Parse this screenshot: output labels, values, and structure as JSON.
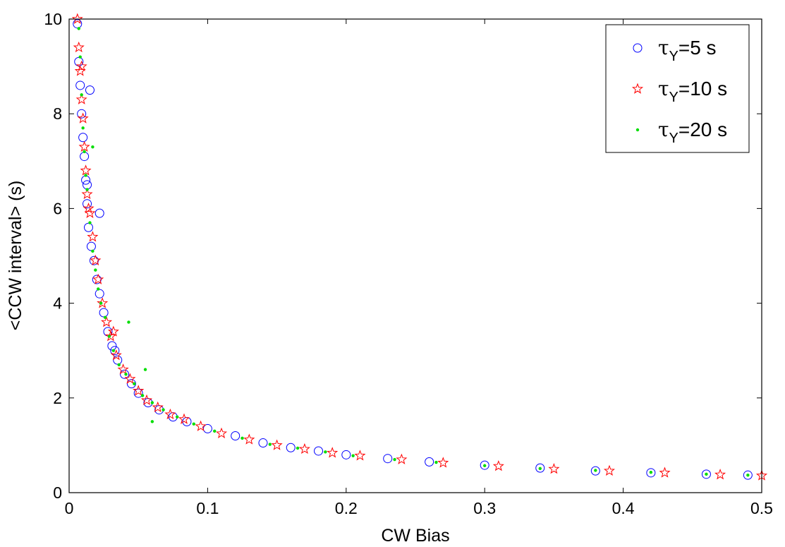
{
  "chart_data": {
    "type": "scatter",
    "xlabel": "CW Bias",
    "ylabel": "<CCW interval> (s)",
    "xlim": [
      0,
      0.5
    ],
    "ylim": [
      0,
      10
    ],
    "x_ticks": [
      "0",
      "0.1",
      "0.2",
      "0.3",
      "0.4",
      "0.5"
    ],
    "y_ticks": [
      "0",
      "2",
      "4",
      "6",
      "8",
      "10"
    ],
    "grid": false,
    "legend_position": "top-right",
    "relation": "y ≈ 0.18 / x (points scatter tightly around this curve)",
    "series": [
      {
        "label_prefix": "τ",
        "label_sub": "Y",
        "label_suffix": "=5 s",
        "marker": "circle",
        "color": "#0000ff",
        "points": [
          [
            0.006,
            9.9
          ],
          [
            0.007,
            9.1
          ],
          [
            0.008,
            8.6
          ],
          [
            0.009,
            8.0
          ],
          [
            0.01,
            7.5
          ],
          [
            0.011,
            7.1
          ],
          [
            0.012,
            6.6
          ],
          [
            0.013,
            6.1
          ],
          [
            0.014,
            5.6
          ],
          [
            0.016,
            5.2
          ],
          [
            0.018,
            4.9
          ],
          [
            0.02,
            4.5
          ],
          [
            0.022,
            4.2
          ],
          [
            0.025,
            3.8
          ],
          [
            0.028,
            3.4
          ],
          [
            0.031,
            3.1
          ],
          [
            0.035,
            2.8
          ],
          [
            0.04,
            2.5
          ],
          [
            0.045,
            2.3
          ],
          [
            0.05,
            2.1
          ],
          [
            0.057,
            1.9
          ],
          [
            0.065,
            1.75
          ],
          [
            0.075,
            1.6
          ],
          [
            0.085,
            1.5
          ],
          [
            0.1,
            1.35
          ],
          [
            0.12,
            1.2
          ],
          [
            0.14,
            1.05
          ],
          [
            0.16,
            0.95
          ],
          [
            0.18,
            0.88
          ],
          [
            0.2,
            0.8
          ],
          [
            0.23,
            0.72
          ],
          [
            0.26,
            0.65
          ],
          [
            0.3,
            0.58
          ],
          [
            0.34,
            0.52
          ],
          [
            0.38,
            0.46
          ],
          [
            0.42,
            0.42
          ],
          [
            0.46,
            0.39
          ],
          [
            0.49,
            0.37
          ],
          [
            0.015,
            8.5
          ],
          [
            0.013,
            6.5
          ],
          [
            0.022,
            5.9
          ],
          [
            0.033,
            3.0
          ]
        ]
      },
      {
        "label_prefix": "τ",
        "label_sub": "Y",
        "label_suffix": "=10 s",
        "marker": "star",
        "color": "#ff0000",
        "points": [
          [
            0.006,
            10.0
          ],
          [
            0.007,
            9.4
          ],
          [
            0.008,
            8.9
          ],
          [
            0.009,
            8.3
          ],
          [
            0.01,
            7.9
          ],
          [
            0.011,
            7.3
          ],
          [
            0.012,
            6.8
          ],
          [
            0.013,
            6.3
          ],
          [
            0.015,
            5.9
          ],
          [
            0.017,
            5.4
          ],
          [
            0.019,
            4.9
          ],
          [
            0.021,
            4.5
          ],
          [
            0.024,
            4.0
          ],
          [
            0.027,
            3.6
          ],
          [
            0.03,
            3.3
          ],
          [
            0.034,
            2.9
          ],
          [
            0.039,
            2.6
          ],
          [
            0.044,
            2.4
          ],
          [
            0.05,
            2.15
          ],
          [
            0.056,
            1.95
          ],
          [
            0.064,
            1.8
          ],
          [
            0.073,
            1.65
          ],
          [
            0.083,
            1.55
          ],
          [
            0.095,
            1.4
          ],
          [
            0.11,
            1.25
          ],
          [
            0.13,
            1.12
          ],
          [
            0.15,
            1.0
          ],
          [
            0.17,
            0.92
          ],
          [
            0.19,
            0.84
          ],
          [
            0.21,
            0.78
          ],
          [
            0.24,
            0.7
          ],
          [
            0.27,
            0.63
          ],
          [
            0.31,
            0.56
          ],
          [
            0.35,
            0.5
          ],
          [
            0.39,
            0.46
          ],
          [
            0.43,
            0.42
          ],
          [
            0.47,
            0.38
          ],
          [
            0.5,
            0.36
          ],
          [
            0.009,
            9.0
          ],
          [
            0.014,
            6.0
          ],
          [
            0.032,
            3.4
          ]
        ]
      },
      {
        "label_prefix": "τ",
        "label_sub": "Y",
        "label_suffix": "=20 s",
        "marker": "dot",
        "color": "#00dd00",
        "points": [
          [
            0.007,
            9.8
          ],
          [
            0.008,
            9.2
          ],
          [
            0.009,
            8.4
          ],
          [
            0.01,
            7.7
          ],
          [
            0.011,
            7.2
          ],
          [
            0.012,
            6.7
          ],
          [
            0.013,
            6.4
          ],
          [
            0.015,
            5.7
          ],
          [
            0.017,
            5.1
          ],
          [
            0.019,
            4.7
          ],
          [
            0.021,
            4.3
          ],
          [
            0.023,
            4.0
          ],
          [
            0.026,
            3.7
          ],
          [
            0.029,
            3.3
          ],
          [
            0.032,
            3.0
          ],
          [
            0.036,
            2.7
          ],
          [
            0.041,
            2.5
          ],
          [
            0.043,
            3.6
          ],
          [
            0.047,
            2.3
          ],
          [
            0.053,
            2.05
          ],
          [
            0.055,
            2.6
          ],
          [
            0.06,
            1.9
          ],
          [
            0.068,
            1.75
          ],
          [
            0.078,
            1.6
          ],
          [
            0.09,
            1.45
          ],
          [
            0.105,
            1.3
          ],
          [
            0.125,
            1.15
          ],
          [
            0.145,
            1.02
          ],
          [
            0.165,
            0.94
          ],
          [
            0.185,
            0.86
          ],
          [
            0.205,
            0.78
          ],
          [
            0.235,
            0.7
          ],
          [
            0.265,
            0.64
          ],
          [
            0.3,
            0.57
          ],
          [
            0.34,
            0.51
          ],
          [
            0.38,
            0.47
          ],
          [
            0.42,
            0.43
          ],
          [
            0.46,
            0.39
          ],
          [
            0.49,
            0.37
          ],
          [
            0.017,
            7.3
          ],
          [
            0.06,
            1.5
          ]
        ]
      }
    ]
  }
}
